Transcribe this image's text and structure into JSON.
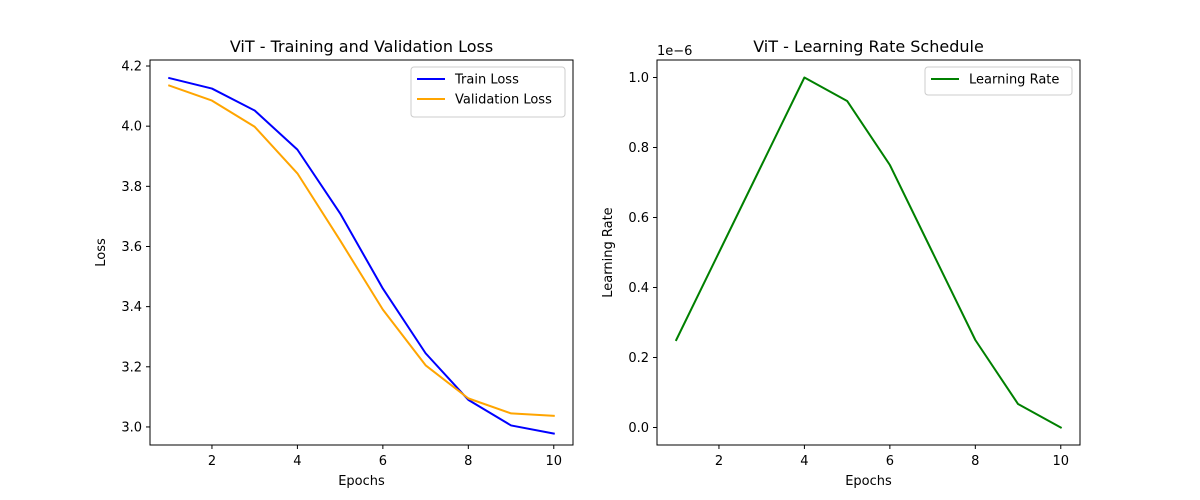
{
  "chart_data": [
    {
      "type": "line",
      "title": "ViT - Training and Validation Loss",
      "xlabel": "Epochs",
      "ylabel": "Loss",
      "xlim": [
        0.55,
        10.45
      ],
      "ylim": [
        2.94,
        4.22
      ],
      "xticks": [
        2,
        4,
        6,
        8,
        10
      ],
      "yticks": [
        3.0,
        3.2,
        3.4,
        3.6,
        3.8,
        4.0,
        4.2
      ],
      "ytick_decimals": 1,
      "offset_text": "",
      "legend_position": "upper right",
      "x": [
        1,
        2,
        3,
        4,
        5,
        6,
        7,
        8,
        9,
        10
      ],
      "series": [
        {
          "name": "Train Loss",
          "color": "#0000ff",
          "values": [
            4.16,
            4.125,
            4.052,
            3.922,
            3.71,
            3.46,
            3.245,
            3.09,
            3.005,
            2.978
          ]
        },
        {
          "name": "Validation Loss",
          "color": "#ffa500",
          "values": [
            4.135,
            4.085,
            3.998,
            3.843,
            3.62,
            3.39,
            3.205,
            3.095,
            3.045,
            3.037
          ]
        }
      ]
    },
    {
      "type": "line",
      "title": "ViT - Learning Rate Schedule",
      "xlabel": "Epochs",
      "ylabel": "Learning Rate",
      "xlim": [
        0.55,
        10.45
      ],
      "ylim": [
        -0.05,
        1.05
      ],
      "xticks": [
        2,
        4,
        6,
        8,
        10
      ],
      "yticks": [
        0.0,
        0.2,
        0.4,
        0.6,
        0.8,
        1.0
      ],
      "ytick_decimals": 1,
      "offset_text": "1e−6",
      "legend_position": "upper right",
      "x": [
        1,
        2,
        3,
        4,
        5,
        6,
        7,
        8,
        9,
        10
      ],
      "series": [
        {
          "name": "Learning Rate",
          "color": "#008000",
          "values": [
            0.25,
            0.5,
            0.75,
            1.0,
            0.933,
            0.75,
            0.5,
            0.25,
            0.067,
            0.0
          ]
        }
      ]
    }
  ]
}
